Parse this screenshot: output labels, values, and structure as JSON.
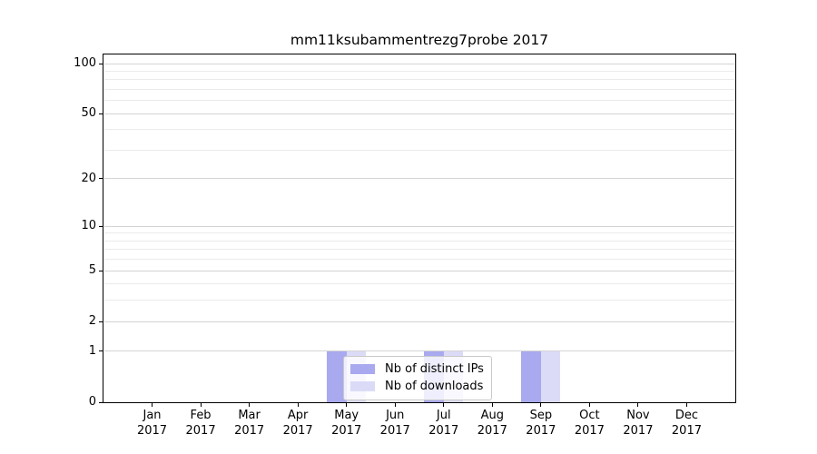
{
  "title": "mm11ksubammentrezg7probe 2017",
  "chart_data": {
    "type": "bar",
    "title": "mm11ksubammentrezg7probe 2017",
    "categories": [
      "Jan 2017",
      "Feb 2017",
      "Mar 2017",
      "Apr 2017",
      "May 2017",
      "Jun 2017",
      "Jul 2017",
      "Aug 2017",
      "Sep 2017",
      "Oct 2017",
      "Nov 2017",
      "Dec 2017"
    ],
    "series": [
      {
        "name": "Nb of distinct IPs",
        "color": "#a9a9f0",
        "values": [
          0,
          0,
          0,
          0,
          1,
          0,
          1,
          0,
          1,
          0,
          0,
          0
        ]
      },
      {
        "name": "Nb of downloads",
        "color": "#dbdbf8",
        "values": [
          0,
          0,
          0,
          0,
          1,
          0,
          1,
          0,
          1,
          0,
          0,
          0
        ]
      }
    ],
    "xlabel": "",
    "ylabel": "",
    "yscale": "symlog (position proportional to log10(1+value))",
    "ylim": [
      0,
      115
    ],
    "major_ticks": [
      100,
      50,
      20,
      10,
      5,
      2,
      1,
      0
    ],
    "minor_gridline_values": [
      90,
      80,
      70,
      60,
      40,
      30,
      9,
      8,
      7,
      6,
      4,
      3
    ],
    "grid": true,
    "legend_position": "inside lower-center, semi-transparent white box"
  },
  "colors": {
    "series1": "#a9a9f0",
    "series2": "#dbdbf8",
    "major_grid": "#d4d4d4",
    "minor_grid": "#ebebeb",
    "spine": "#000000",
    "background": "#ffffff"
  }
}
